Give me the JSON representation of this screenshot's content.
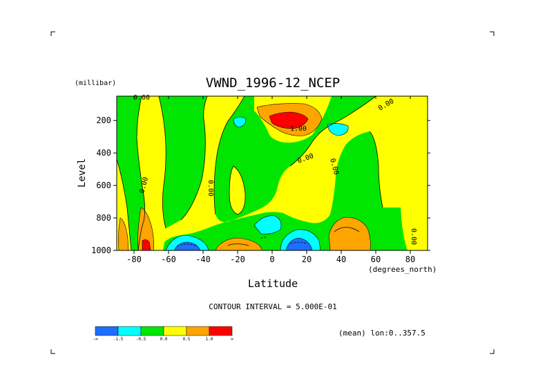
{
  "chart_data": {
    "type": "contour",
    "title": "VWND_1996-12_NCEP",
    "xlabel": "Latitude",
    "x_unit": "(degrees_north)",
    "ylabel": "Level",
    "y_unit": "(millibar)",
    "xlim": [
      -90,
      90
    ],
    "ylim": [
      1000,
      50
    ],
    "y_inverted": true,
    "x_ticks": [
      -80,
      -60,
      -40,
      -20,
      0,
      20,
      40,
      60,
      80
    ],
    "y_ticks": [
      200,
      400,
      600,
      800,
      1000
    ],
    "x_tick_labels": [
      "-80",
      "-60",
      "-40",
      "-20",
      "0",
      "20",
      "40",
      "60",
      "80"
    ],
    "y_tick_labels": [
      "200",
      "400",
      "600",
      "800",
      "1000"
    ],
    "contour_interval_text": "CONTOUR INTERVAL = 5.000E-01",
    "mean_note": "(mean) lon:0..357.5",
    "contour_labels": [
      "0.00",
      "0.00",
      "0.00",
      "0.00",
      "1.00",
      "0.00",
      "0.00",
      "0.00"
    ],
    "legend": {
      "colors": [
        "#1e6eff",
        "#00ffff",
        "#00e600",
        "#ffff00",
        "#ffa500",
        "#ff0000"
      ],
      "labels": [
        "-∞",
        "-1.5",
        "-0.5",
        "0.0",
        "0.5",
        "1.0",
        "∞"
      ]
    }
  }
}
